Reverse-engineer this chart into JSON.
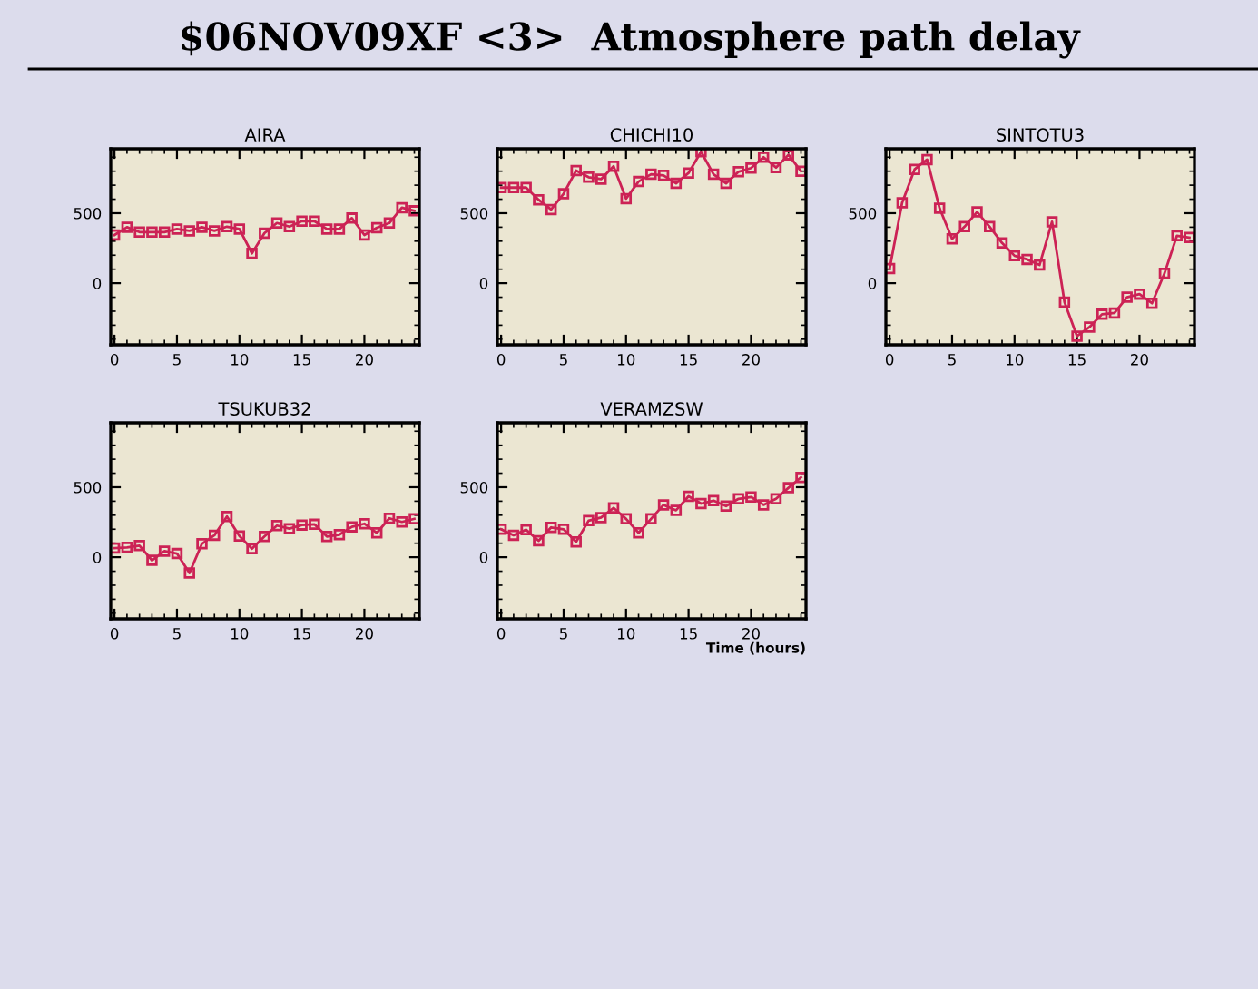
{
  "chart_data": [
    {
      "type": "other",
      "title": "$06NOV09XF <3>  Atmosphere path delay"
    },
    {
      "type": "line",
      "title": "AIRA",
      "x": [
        0,
        1,
        2,
        3,
        4,
        5,
        6,
        7,
        8,
        9,
        10,
        11,
        12,
        13,
        14,
        15,
        16,
        17,
        18,
        19,
        20,
        21,
        22,
        23,
        24
      ],
      "xlim": [
        -0.3,
        24.4
      ],
      "ylim": [
        -440,
        960
      ],
      "xticks": [
        0,
        5,
        10,
        15,
        20
      ],
      "yticks": [
        0,
        500
      ],
      "marker": "square",
      "line_style": "solid",
      "grid": false,
      "series": [
        {
          "color": "#cc2255",
          "values": [
            344,
            400,
            365,
            365,
            365,
            387,
            374,
            400,
            374,
            404,
            387,
            213,
            357,
            430,
            404,
            443,
            443,
            387,
            387,
            465,
            344,
            396,
            430,
            539,
            517
          ]
        }
      ]
    },
    {
      "type": "line",
      "title": "CHICHI10",
      "x": [
        0,
        1,
        2,
        3,
        4,
        5,
        6,
        7,
        8,
        9,
        10,
        11,
        12,
        13,
        14,
        15,
        16,
        17,
        18,
        19,
        20,
        21,
        22,
        23,
        24
      ],
      "xlim": [
        -0.3,
        24.4
      ],
      "ylim": [
        -440,
        960
      ],
      "xticks": [
        0,
        5,
        10,
        15,
        20
      ],
      "yticks": [
        0,
        500
      ],
      "marker": "square",
      "line_style": "solid",
      "grid": false,
      "series": [
        {
          "color": "#cc2255",
          "values": [
            683,
            683,
            683,
            596,
            526,
            639,
            804,
            757,
            743,
            835,
            604,
            726,
            778,
            770,
            713,
            787,
            939,
            778,
            713,
            796,
            822,
            900,
            826,
            917,
            800
          ]
        }
      ]
    },
    {
      "type": "line",
      "title": "SINTOTU3",
      "x": [
        0,
        1,
        2,
        3,
        4,
        5,
        6,
        7,
        8,
        9,
        10,
        11,
        12,
        13,
        14,
        15,
        16,
        17,
        18,
        19,
        20,
        21,
        22,
        23,
        24
      ],
      "xlim": [
        -0.3,
        24.4
      ],
      "ylim": [
        -440,
        960
      ],
      "xticks": [
        0,
        5,
        10,
        15,
        20
      ],
      "yticks": [
        0,
        500
      ],
      "marker": "square",
      "line_style": "solid",
      "grid": false,
      "series": [
        {
          "color": "#cc2255",
          "values": [
            104,
            574,
            813,
            883,
            535,
            317,
            404,
            509,
            404,
            287,
            196,
            170,
            130,
            439,
            -135,
            -378,
            -313,
            -222,
            -213,
            -100,
            -78,
            -143,
            70,
            339,
            326
          ]
        }
      ]
    },
    {
      "type": "line",
      "title": "TSUKUB32",
      "x": [
        0,
        1,
        2,
        3,
        4,
        5,
        6,
        7,
        8,
        9,
        10,
        11,
        12,
        13,
        14,
        15,
        16,
        17,
        18,
        19,
        20,
        21,
        22,
        23,
        24
      ],
      "xlim": [
        -0.3,
        24.4
      ],
      "ylim": [
        -440,
        960
      ],
      "xticks": [
        0,
        5,
        10,
        15,
        20
      ],
      "yticks": [
        0,
        500
      ],
      "marker": "square",
      "line_style": "solid",
      "grid": false,
      "series": [
        {
          "color": "#cc2255",
          "values": [
            65,
            70,
            83,
            -22,
            43,
            26,
            -113,
            96,
            157,
            291,
            152,
            61,
            148,
            226,
            204,
            230,
            235,
            148,
            161,
            217,
            239,
            174,
            278,
            252,
            274
          ]
        }
      ]
    },
    {
      "type": "line",
      "title": "VERAMZSW",
      "xlabel": "Time (hours)",
      "x": [
        0,
        1,
        2,
        3,
        4,
        5,
        6,
        7,
        8,
        9,
        10,
        11,
        12,
        13,
        14,
        15,
        16,
        17,
        18,
        19,
        20,
        21,
        22,
        23,
        24
      ],
      "xlim": [
        -0.3,
        24.4
      ],
      "ylim": [
        -440,
        960
      ],
      "xticks": [
        0,
        5,
        10,
        15,
        20
      ],
      "yticks": [
        0,
        500
      ],
      "marker": "square",
      "line_style": "solid",
      "grid": false,
      "series": [
        {
          "color": "#cc2255",
          "values": [
            200,
            157,
            196,
            117,
            213,
            200,
            109,
            261,
            283,
            352,
            274,
            174,
            274,
            374,
            335,
            435,
            383,
            404,
            365,
            417,
            430,
            374,
            417,
            496,
            570
          ]
        }
      ]
    }
  ]
}
